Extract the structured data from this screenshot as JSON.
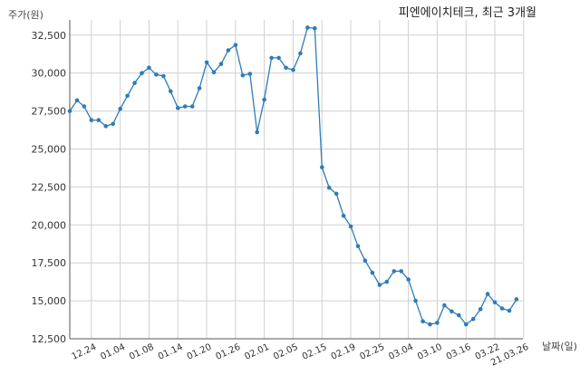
{
  "chart_data": {
    "type": "line",
    "title": "피엔에이치테크, 최근 3개월",
    "ylabel": "주가(원)",
    "xlabel": "날짜(일)",
    "ylim": [
      12500,
      33500
    ],
    "yticks": [
      12500,
      15000,
      17500,
      20000,
      22500,
      25000,
      27500,
      30000,
      32500
    ],
    "ytick_labels": [
      "12,500",
      "15,000",
      "17,500",
      "20,000",
      "22,500",
      "25,000",
      "27,500",
      "30,000",
      "32,500"
    ],
    "x_ticks": [
      {
        "i": 3,
        "label": "12.24"
      },
      {
        "i": 7,
        "label": "01.04"
      },
      {
        "i": 11,
        "label": "01.08"
      },
      {
        "i": 15,
        "label": "01.14"
      },
      {
        "i": 19,
        "label": "01.20"
      },
      {
        "i": 23,
        "label": "01.26"
      },
      {
        "i": 27,
        "label": "02.01"
      },
      {
        "i": 31,
        "label": "02.05"
      },
      {
        "i": 35,
        "label": "02.15"
      },
      {
        "i": 39,
        "label": "02.19"
      },
      {
        "i": 43,
        "label": "02.25"
      },
      {
        "i": 47,
        "label": "03.04"
      },
      {
        "i": 51,
        "label": "03.10"
      },
      {
        "i": 55,
        "label": "03.16"
      },
      {
        "i": 59,
        "label": "03.22"
      },
      {
        "i": 63,
        "label": "21.03.26"
      }
    ],
    "grid": true,
    "series": [
      {
        "color": "#2e7cb8",
        "values": [
          27500,
          28200,
          27800,
          26900,
          26900,
          26500,
          26650,
          27650,
          28500,
          29350,
          30000,
          30350,
          29900,
          29800,
          28800,
          27700,
          27800,
          27800,
          29000,
          30700,
          30050,
          30600,
          31500,
          31850,
          29850,
          29950,
          26100,
          28250,
          31000,
          31000,
          30350,
          30200,
          31300,
          33000,
          32950,
          23800,
          22450,
          22050,
          20600,
          19900,
          18600,
          17650,
          16850,
          16050,
          16250,
          16950,
          16950,
          16400,
          15000,
          13650,
          13450,
          13550,
          14700,
          14300,
          14050,
          13450,
          13800,
          14450,
          15450,
          14900,
          14500,
          14350,
          15100
        ]
      }
    ]
  }
}
